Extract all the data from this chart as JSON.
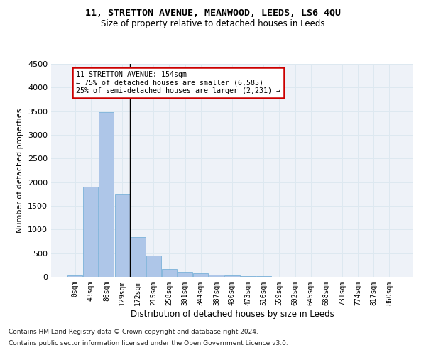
{
  "title1": "11, STRETTON AVENUE, MEANWOOD, LEEDS, LS6 4QU",
  "title2": "Size of property relative to detached houses in Leeds",
  "xlabel": "Distribution of detached houses by size in Leeds",
  "ylabel": "Number of detached properties",
  "categories": [
    "0sqm",
    "43sqm",
    "86sqm",
    "129sqm",
    "172sqm",
    "215sqm",
    "258sqm",
    "301sqm",
    "344sqm",
    "387sqm",
    "430sqm",
    "473sqm",
    "516sqm",
    "559sqm",
    "602sqm",
    "645sqm",
    "688sqm",
    "731sqm",
    "774sqm",
    "817sqm",
    "860sqm"
  ],
  "values": [
    30,
    1900,
    3480,
    1760,
    840,
    450,
    160,
    100,
    70,
    50,
    30,
    15,
    8,
    5,
    3,
    2,
    2,
    1,
    1,
    1,
    1
  ],
  "bar_color": "#aec6e8",
  "bar_edgecolor": "#6aaad4",
  "ylim": [
    0,
    4500
  ],
  "yticks": [
    0,
    500,
    1000,
    1500,
    2000,
    2500,
    3000,
    3500,
    4000,
    4500
  ],
  "annotation_line1": "11 STRETTON AVENUE: 154sqm",
  "annotation_line2": "← 75% of detached houses are smaller (6,585)",
  "annotation_line3": "25% of semi-detached houses are larger (2,231) →",
  "box_color": "#cc0000",
  "grid_color": "#dde8f0",
  "background_color": "#eef2f8",
  "footer1": "Contains HM Land Registry data © Crown copyright and database right 2024.",
  "footer2": "Contains public sector information licensed under the Open Government Licence v3.0."
}
